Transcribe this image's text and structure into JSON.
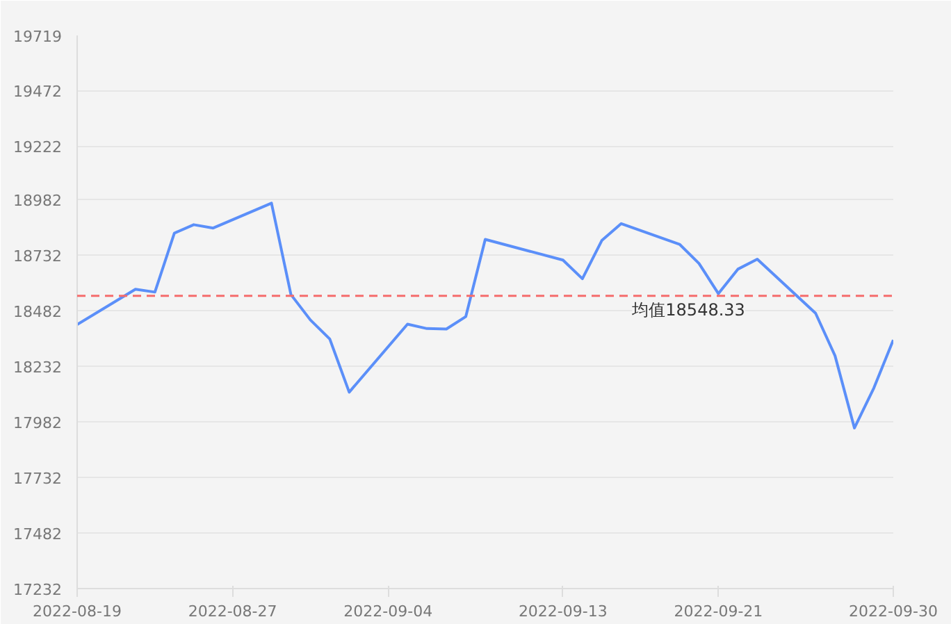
{
  "chart_data": {
    "type": "line",
    "x": [
      "2022-08-19",
      "2022-08-22",
      "2022-08-23",
      "2022-08-24",
      "2022-08-25",
      "2022-08-26",
      "2022-08-29",
      "2022-08-30",
      "2022-08-31",
      "2022-09-01",
      "2022-09-02",
      "2022-09-05",
      "2022-09-06",
      "2022-09-07",
      "2022-09-08",
      "2022-09-09",
      "2022-09-13",
      "2022-09-14",
      "2022-09-15",
      "2022-09-16",
      "2022-09-19",
      "2022-09-20",
      "2022-09-21",
      "2022-09-22",
      "2022-09-23",
      "2022-09-26",
      "2022-09-27",
      "2022-09-28",
      "2022-09-29",
      "2022-09-30"
    ],
    "series": [
      {
        "color": "#5b8ff9",
        "values": [
          18419,
          18578,
          18565,
          18830,
          18868,
          18853,
          18965,
          18554,
          18440,
          18354,
          18115,
          18421,
          18401,
          18399,
          18455,
          18802,
          18709,
          18625,
          18797,
          18873,
          18780,
          18694,
          18558,
          18668,
          18713,
          18470,
          18279,
          17954,
          18134,
          18350
        ]
      }
    ],
    "xlim": [
      "2022-08-19",
      "2022-09-30"
    ],
    "xticks": [
      "2022-08-19",
      "2022-08-27",
      "2022-09-04",
      "2022-09-13",
      "2022-09-21",
      "2022-09-30"
    ],
    "ylim": [
      17232,
      19719
    ],
    "yticks": [
      17232,
      17482,
      17732,
      17982,
      18232,
      18482,
      18732,
      18982,
      19222,
      19472,
      19719
    ],
    "grid": "y",
    "marker": "none",
    "line_style": "solid",
    "ref_lines": [
      {
        "axis": "y",
        "value": 18548.33,
        "label": "均值18548.33",
        "color": "#f56c6c",
        "line_style": "dashed"
      }
    ]
  }
}
